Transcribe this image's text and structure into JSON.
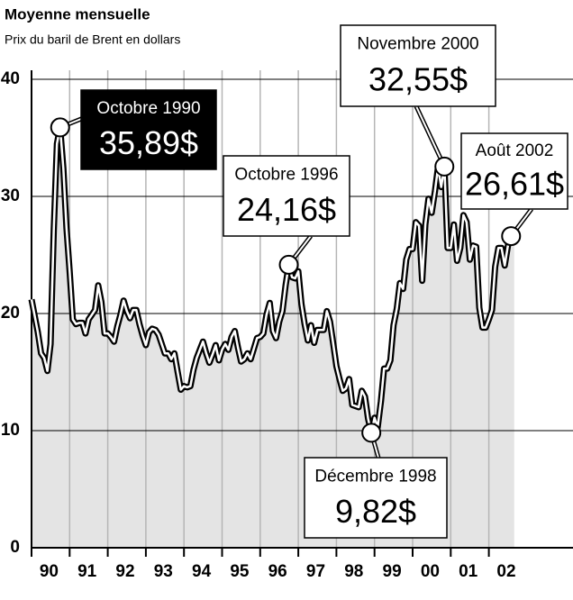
{
  "chart_data": {
    "type": "line",
    "title": "Moyenne mensuelle",
    "subtitle": "Prix du baril de Brent en dollars",
    "categories": [
      null,
      null,
      null,
      null,
      null,
      null,
      "90",
      null,
      null,
      null,
      null,
      null,
      null,
      null,
      null,
      null,
      null,
      null,
      "91",
      null,
      null,
      null,
      null,
      null,
      null,
      null,
      null,
      null,
      null,
      null,
      "92",
      null,
      null,
      null,
      null,
      null,
      null,
      null,
      null,
      null,
      null,
      null,
      "93",
      null,
      null,
      null,
      null,
      null,
      null,
      null,
      null,
      null,
      null,
      null,
      "94",
      null,
      null,
      null,
      null,
      null,
      null,
      null,
      null,
      null,
      null,
      null,
      "95",
      null,
      null,
      null,
      null,
      null,
      null,
      null,
      null,
      null,
      null,
      null,
      "96",
      null,
      null,
      null,
      null,
      null,
      null,
      null,
      null,
      null,
      null,
      null,
      "97",
      null,
      null,
      null,
      null,
      null,
      null,
      null,
      null,
      null,
      null,
      null,
      "98",
      null,
      null,
      null,
      null,
      null,
      null,
      null,
      null,
      null,
      null,
      null,
      "99",
      null,
      null,
      null,
      null,
      null,
      null,
      null,
      null,
      null,
      null,
      null,
      "00",
      null,
      null,
      null,
      null,
      null,
      null,
      null,
      null,
      null,
      null,
      null,
      "01",
      null,
      null,
      null,
      null,
      null,
      null,
      null,
      null,
      null,
      null,
      null,
      "02",
      null,
      null
    ],
    "series": [
      {
        "color": "#000000",
        "fill": "#e4e4e4",
        "values": [
          21.2,
          19.8,
          18.4,
          16.6,
          16.2,
          15.1,
          17.4,
          27.2,
          34.5,
          35.89,
          32.4,
          27.3,
          23.6,
          19.5,
          19.1,
          19.2,
          19.2,
          18.3,
          19.5,
          19.9,
          20.3,
          22.4,
          21.0,
          18.3,
          18.3,
          18.0,
          17.6,
          18.9,
          19.9,
          21.1,
          20.2,
          19.6,
          20.3,
          20.3,
          19.1,
          18.1,
          17.3,
          18.4,
          18.7,
          18.6,
          18.2,
          17.4,
          16.6,
          16.6,
          16.1,
          16.6,
          15.0,
          13.5,
          13.8,
          13.7,
          13.8,
          15.2,
          16.2,
          16.9,
          17.6,
          16.6,
          15.8,
          16.5,
          17.3,
          16.0,
          16.9,
          17.4,
          16.9,
          18.0,
          18.5,
          17.1,
          15.9,
          16.1,
          16.6,
          16.1,
          17.0,
          17.9,
          18.0,
          18.3,
          19.9,
          20.9,
          18.5,
          17.9,
          19.3,
          20.2,
          22.4,
          24.16,
          23.1,
          23.0,
          23.6,
          20.8,
          19.1,
          17.7,
          19.0,
          17.5,
          18.6,
          18.6,
          18.6,
          20.2,
          19.3,
          17.4,
          15.5,
          14.4,
          13.4,
          13.6,
          14.4,
          12.2,
          12.1,
          12.0,
          13.4,
          12.9,
          11.0,
          9.82,
          11.1,
          10.3,
          12.5,
          15.3,
          15.3,
          16.0,
          19.0,
          20.4,
          22.6,
          22.1,
          24.6,
          25.5,
          25.5,
          27.8,
          27.5,
          22.8,
          27.6,
          29.8,
          28.6,
          30.4,
          32.5,
          30.8,
          32.55,
          25.6,
          25.6,
          27.6,
          24.5,
          25.6,
          28.4,
          27.8,
          24.6,
          25.8,
          25.7,
          20.5,
          18.8,
          18.8,
          19.5,
          20.3,
          24.0,
          25.6,
          25.6,
          24.1,
          25.8,
          26.61,
          27.0
        ],
        "value_labels": [
          null,
          null,
          null,
          null,
          null,
          null,
          null,
          null,
          null,
          "35,89$",
          null,
          null,
          null,
          null,
          null,
          null,
          null,
          null,
          null,
          null,
          null,
          null,
          null,
          null,
          null,
          null,
          null,
          null,
          null,
          null,
          null,
          null,
          null,
          null,
          null,
          null,
          null,
          null,
          null,
          null,
          null,
          null,
          null,
          null,
          null,
          null,
          null,
          null,
          null,
          null,
          null,
          null,
          null,
          null,
          null,
          null,
          null,
          null,
          null,
          null,
          null,
          null,
          null,
          null,
          null,
          null,
          null,
          null,
          null,
          null,
          null,
          null,
          null,
          null,
          null,
          null,
          null,
          null,
          null,
          null,
          null,
          "24,16$",
          null,
          null,
          null,
          null,
          null,
          null,
          null,
          null,
          null,
          null,
          null,
          null,
          null,
          null,
          null,
          null,
          null,
          null,
          null,
          null,
          null,
          null,
          null,
          null,
          null,
          "9,82$",
          null,
          null,
          null,
          null,
          null,
          null,
          null,
          null,
          null,
          null,
          null,
          null,
          null,
          null,
          null,
          null,
          null,
          null,
          null,
          null,
          null,
          null,
          "32,55$",
          null,
          null,
          null,
          null,
          null,
          null,
          null,
          null,
          null,
          null,
          null,
          null,
          null,
          null,
          null,
          null,
          null,
          null,
          null,
          null,
          "26,61$",
          null
        ]
      }
    ],
    "annotations": [
      "Octobre 1990",
      "Octobre 1996",
      "Décembre 1998",
      "Novembre 2000",
      "Août 2002"
    ],
    "ylim": [
      0,
      40
    ],
    "yticks": [
      0,
      10,
      20,
      30,
      40
    ],
    "grid": true
  }
}
